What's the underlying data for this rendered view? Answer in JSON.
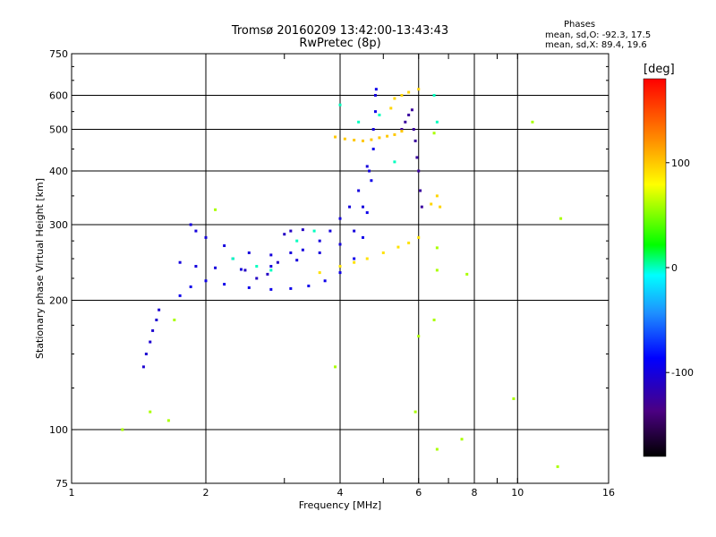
{
  "chart_data": {
    "type": "scatter",
    "title": "Tromsø 20160209 13:42:00-13:43:43",
    "subtitle": "RwPretec (8p)",
    "xlabel": "Frequency [MHz]",
    "ylabel": "Stationary phase Virtual Height [km]",
    "x_scale": "log",
    "y_scale": "log",
    "xlim": [
      1,
      16
    ],
    "ylim": [
      75,
      750
    ],
    "x_ticks": [
      1,
      2,
      3,
      4,
      5,
      6,
      7,
      8,
      9,
      10,
      16
    ],
    "x_tick_labels": [
      "1",
      "2",
      "",
      "4",
      "",
      "6",
      "",
      "8",
      "",
      "10",
      "16"
    ],
    "x_gridlines": [
      2,
      4,
      6,
      8,
      10
    ],
    "y_ticks": [
      75,
      100,
      200,
      300,
      400,
      500,
      600,
      750
    ],
    "y_tick_labels": [
      "75",
      "100",
      "200",
      "300",
      "400",
      "500",
      "600",
      "750"
    ],
    "y_gridlines": [
      100,
      200,
      300,
      400,
      500,
      600
    ],
    "legend": {
      "heading": "Phases",
      "o_mode": "mean, sd,O: -92.3, 17.5",
      "x_mode": "mean, sd,X: 89.4, 19.6"
    },
    "colorbar": {
      "label": "[deg]",
      "range": [
        -180,
        180
      ],
      "ticks": [
        100,
        0,
        -100
      ],
      "tick_labels": [
        "100",
        "0",
        "-100"
      ]
    },
    "series": [
      {
        "name": "F2 O-mode lower trace (blue)",
        "phase": -95,
        "points": [
          [
            1.75,
            205
          ],
          [
            1.85,
            215
          ],
          [
            2.0,
            222
          ],
          [
            2.2,
            218
          ],
          [
            2.5,
            214
          ],
          [
            2.8,
            212
          ],
          [
            3.1,
            213
          ],
          [
            3.4,
            216
          ],
          [
            3.7,
            222
          ],
          [
            4.0,
            232
          ],
          [
            4.3,
            250
          ],
          [
            4.5,
            280
          ],
          [
            4.6,
            320
          ],
          [
            4.7,
            380
          ],
          [
            4.75,
            450
          ],
          [
            4.8,
            550
          ],
          [
            4.82,
            620
          ]
        ]
      },
      {
        "name": "F2 O-mode second trace (blue)",
        "phase": -100,
        "points": [
          [
            1.75,
            245
          ],
          [
            1.9,
            240
          ],
          [
            2.1,
            238
          ],
          [
            2.4,
            236
          ],
          [
            2.8,
            240
          ],
          [
            3.2,
            248
          ],
          [
            3.6,
            258
          ],
          [
            4.0,
            270
          ],
          [
            4.3,
            290
          ],
          [
            4.5,
            330
          ],
          [
            4.65,
            400
          ],
          [
            4.75,
            500
          ],
          [
            4.8,
            600
          ]
        ]
      },
      {
        "name": "F2 O-mode upper trace (blue)",
        "phase": -100,
        "points": [
          [
            1.85,
            300
          ],
          [
            1.9,
            290
          ],
          [
            2.0,
            280
          ],
          [
            2.2,
            268
          ],
          [
            2.5,
            258
          ],
          [
            2.8,
            255
          ],
          [
            3.1,
            258
          ],
          [
            3.3,
            262
          ],
          [
            3.6,
            275
          ],
          [
            3.8,
            290
          ],
          [
            4.0,
            310
          ],
          [
            4.2,
            330
          ],
          [
            4.4,
            360
          ],
          [
            4.6,
            410
          ]
        ]
      },
      {
        "name": "Spread near 2.5 MHz (blue)",
        "phase": -110,
        "points": [
          [
            2.3,
            250
          ],
          [
            2.45,
            235
          ],
          [
            2.6,
            225
          ],
          [
            2.75,
            230
          ],
          [
            2.9,
            245
          ],
          [
            3.0,
            285
          ],
          [
            3.1,
            290
          ],
          [
            3.3,
            292
          ]
        ]
      },
      {
        "name": "Low frequency O trace (blue)",
        "phase": -105,
        "points": [
          [
            1.45,
            140
          ],
          [
            1.47,
            150
          ],
          [
            1.5,
            160
          ],
          [
            1.52,
            170
          ],
          [
            1.55,
            180
          ],
          [
            1.57,
            190
          ]
        ]
      },
      {
        "name": "Upper F2 high frequency (purple/blue)",
        "phase": -125,
        "points": [
          [
            5.5,
            500
          ],
          [
            5.6,
            520
          ],
          [
            5.7,
            540
          ],
          [
            5.8,
            555
          ],
          [
            5.85,
            500
          ],
          [
            5.9,
            470
          ],
          [
            5.95,
            430
          ],
          [
            6.0,
            400
          ],
          [
            6.05,
            360
          ],
          [
            6.1,
            330
          ]
        ]
      },
      {
        "name": "X-mode 480 km band (yellow)",
        "phase": 100,
        "points": [
          [
            3.9,
            480
          ],
          [
            4.1,
            475
          ],
          [
            4.3,
            472
          ],
          [
            4.5,
            470
          ],
          [
            4.7,
            473
          ],
          [
            4.9,
            478
          ],
          [
            5.1,
            482
          ],
          [
            5.3,
            486
          ],
          [
            5.5,
            495
          ]
        ]
      },
      {
        "name": "X-mode yellow/orange low trace",
        "phase": 90,
        "points": [
          [
            3.6,
            232
          ],
          [
            4.0,
            240
          ],
          [
            4.3,
            245
          ],
          [
            4.6,
            250
          ],
          [
            5.0,
            258
          ],
          [
            5.4,
            266
          ],
          [
            5.7,
            272
          ],
          [
            6.0,
            280
          ]
        ]
      },
      {
        "name": "X-mode upper high-frequency (yellow)",
        "phase": 95,
        "points": [
          [
            5.2,
            560
          ],
          [
            5.3,
            590
          ],
          [
            5.5,
            600
          ],
          [
            5.7,
            610
          ],
          [
            6.0,
            620
          ],
          [
            6.4,
            335
          ],
          [
            6.6,
            350
          ],
          [
            6.7,
            330
          ]
        ]
      },
      {
        "name": "Mixed phase points (green/cyan)",
        "phase": 0,
        "points": [
          [
            2.3,
            250
          ],
          [
            2.6,
            240
          ],
          [
            2.8,
            235
          ],
          [
            3.2,
            275
          ],
          [
            3.5,
            290
          ],
          [
            4.0,
            570
          ],
          [
            4.4,
            520
          ],
          [
            4.9,
            540
          ],
          [
            5.3,
            420
          ],
          [
            6.5,
            600
          ],
          [
            6.6,
            520
          ]
        ]
      },
      {
        "name": "Sparse scattered points",
        "phase": 60,
        "points": [
          [
            1.3,
            100
          ],
          [
            1.5,
            110
          ],
          [
            1.65,
            105
          ],
          [
            1.7,
            180
          ],
          [
            2.1,
            325
          ],
          [
            3.9,
            140
          ],
          [
            5.9,
            110
          ],
          [
            6.0,
            165
          ],
          [
            6.5,
            180
          ],
          [
            6.6,
            90
          ],
          [
            7.5,
            95
          ],
          [
            7.7,
            230
          ],
          [
            9.8,
            118
          ],
          [
            10.8,
            520
          ],
          [
            12.3,
            82
          ],
          [
            12.5,
            310
          ],
          [
            6.5,
            490
          ],
          [
            6.6,
            265
          ],
          [
            6.6,
            235
          ]
        ]
      }
    ]
  }
}
